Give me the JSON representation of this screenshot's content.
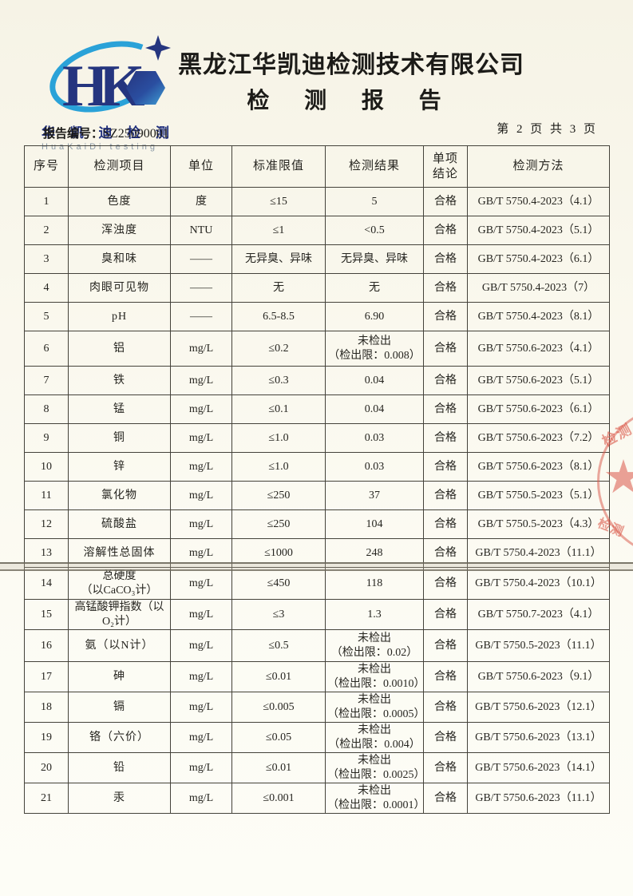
{
  "header": {
    "company": "黑龙江华凯迪检测技术有限公司",
    "report_title": "检 测 报 告",
    "report_no_label": "报告编号：",
    "report_no": "SZ25090001",
    "page_info": "第 2 页 共 3 页"
  },
  "logo": {
    "monogram_h": "H",
    "monogram_k": "K",
    "name_cn": "华 凯 迪 检 测",
    "name_en": "HuaKaiDi testing",
    "navy": "#25357f",
    "blue": "#2aa2d8"
  },
  "table": {
    "columns": [
      "序号",
      "检测项目",
      "单位",
      "标准限值",
      "检测结果",
      "单项\n结论",
      "检测方法"
    ],
    "rows": [
      {
        "no": "1",
        "item": "色度",
        "unit": "度",
        "limit": "≤15",
        "result": "5",
        "conclusion": "合格",
        "method": "GB/T 5750.4-2023（4.1）"
      },
      {
        "no": "2",
        "item": "浑浊度",
        "unit": "NTU",
        "limit": "≤1",
        "result": "<0.5",
        "conclusion": "合格",
        "method": "GB/T 5750.4-2023（5.1）"
      },
      {
        "no": "3",
        "item": "臭和味",
        "unit": "——",
        "limit": "无异臭、异味",
        "result": "无异臭、异味",
        "conclusion": "合格",
        "method": "GB/T 5750.4-2023（6.1）"
      },
      {
        "no": "4",
        "item": "肉眼可见物",
        "unit": "——",
        "limit": "无",
        "result": "无",
        "conclusion": "合格",
        "method": "GB/T 5750.4-2023（7）"
      },
      {
        "no": "5",
        "item": "pH",
        "unit": "——",
        "limit": "6.5-8.5",
        "result": "6.90",
        "conclusion": "合格",
        "method": "GB/T 5750.4-2023（8.1）"
      },
      {
        "no": "6",
        "item": "铝",
        "unit": "mg/L",
        "limit": "≤0.2",
        "result": "未检出\n（检出限：0.008）",
        "conclusion": "合格",
        "method": "GB/T 5750.6-2023（4.1）"
      },
      {
        "no": "7",
        "item": "铁",
        "unit": "mg/L",
        "limit": "≤0.3",
        "result": "0.04",
        "conclusion": "合格",
        "method": "GB/T 5750.6-2023（5.1）"
      },
      {
        "no": "8",
        "item": "锰",
        "unit": "mg/L",
        "limit": "≤0.1",
        "result": "0.04",
        "conclusion": "合格",
        "method": "GB/T 5750.6-2023（6.1）"
      },
      {
        "no": "9",
        "item": "铜",
        "unit": "mg/L",
        "limit": "≤1.0",
        "result": "0.03",
        "conclusion": "合格",
        "method": "GB/T 5750.6-2023（7.2）"
      },
      {
        "no": "10",
        "item": "锌",
        "unit": "mg/L",
        "limit": "≤1.0",
        "result": "0.03",
        "conclusion": "合格",
        "method": "GB/T 5750.6-2023（8.1）"
      },
      {
        "no": "11",
        "item": "氯化物",
        "unit": "mg/L",
        "limit": "≤250",
        "result": "37",
        "conclusion": "合格",
        "method": "GB/T 5750.5-2023（5.1）"
      },
      {
        "no": "12",
        "item": "硫酸盐",
        "unit": "mg/L",
        "limit": "≤250",
        "result": "104",
        "conclusion": "合格",
        "method": "GB/T 5750.5-2023（4.3）"
      },
      {
        "no": "13",
        "item": "溶解性总固体",
        "unit": "mg/L",
        "limit": "≤1000",
        "result": "248",
        "conclusion": "合格",
        "method": "GB/T 5750.4-2023（11.1）"
      },
      {
        "no": "14",
        "item": "总硬度\n（以CaCO₃计）",
        "unit": "mg/L",
        "limit": "≤450",
        "result": "118",
        "conclusion": "合格",
        "method": "GB/T 5750.4-2023（10.1）"
      },
      {
        "no": "15",
        "item": "高锰酸钾指数（以\nO₂计）",
        "unit": "mg/L",
        "limit": "≤3",
        "result": "1.3",
        "conclusion": "合格",
        "method": "GB/T 5750.7-2023（4.1）"
      },
      {
        "no": "16",
        "item": "氨（以N计）",
        "unit": "mg/L",
        "limit": "≤0.5",
        "result": "未检出\n（检出限：0.02）",
        "conclusion": "合格",
        "method": "GB/T 5750.5-2023（11.1）"
      },
      {
        "no": "17",
        "item": "砷",
        "unit": "mg/L",
        "limit": "≤0.01",
        "result": "未检出\n（检出限：0.0010）",
        "conclusion": "合格",
        "method": "GB/T 5750.6-2023（9.1）"
      },
      {
        "no": "18",
        "item": "镉",
        "unit": "mg/L",
        "limit": "≤0.005",
        "result": "未检出\n（检出限：0.0005）",
        "conclusion": "合格",
        "method": "GB/T 5750.6-2023（12.1）"
      },
      {
        "no": "19",
        "item": "铬（六价）",
        "unit": "mg/L",
        "limit": "≤0.05",
        "result": "未检出\n（检出限：0.004）",
        "conclusion": "合格",
        "method": "GB/T 5750.6-2023（13.1）"
      },
      {
        "no": "20",
        "item": "铅",
        "unit": "mg/L",
        "limit": "≤0.01",
        "result": "未检出\n（检出限：0.0025）",
        "conclusion": "合格",
        "method": "GB/T 5750.6-2023（14.1）"
      },
      {
        "no": "21",
        "item": "汞",
        "unit": "mg/L",
        "limit": "≤0.001",
        "result": "未检出\n（检出限：0.0001）",
        "conclusion": "合格",
        "method": "GB/T 5750.6-2023（11.1）"
      }
    ]
  },
  "stamp": {
    "star": "★",
    "text_top": "检测",
    "text_bottom": "检测",
    "color": "#db6054"
  }
}
